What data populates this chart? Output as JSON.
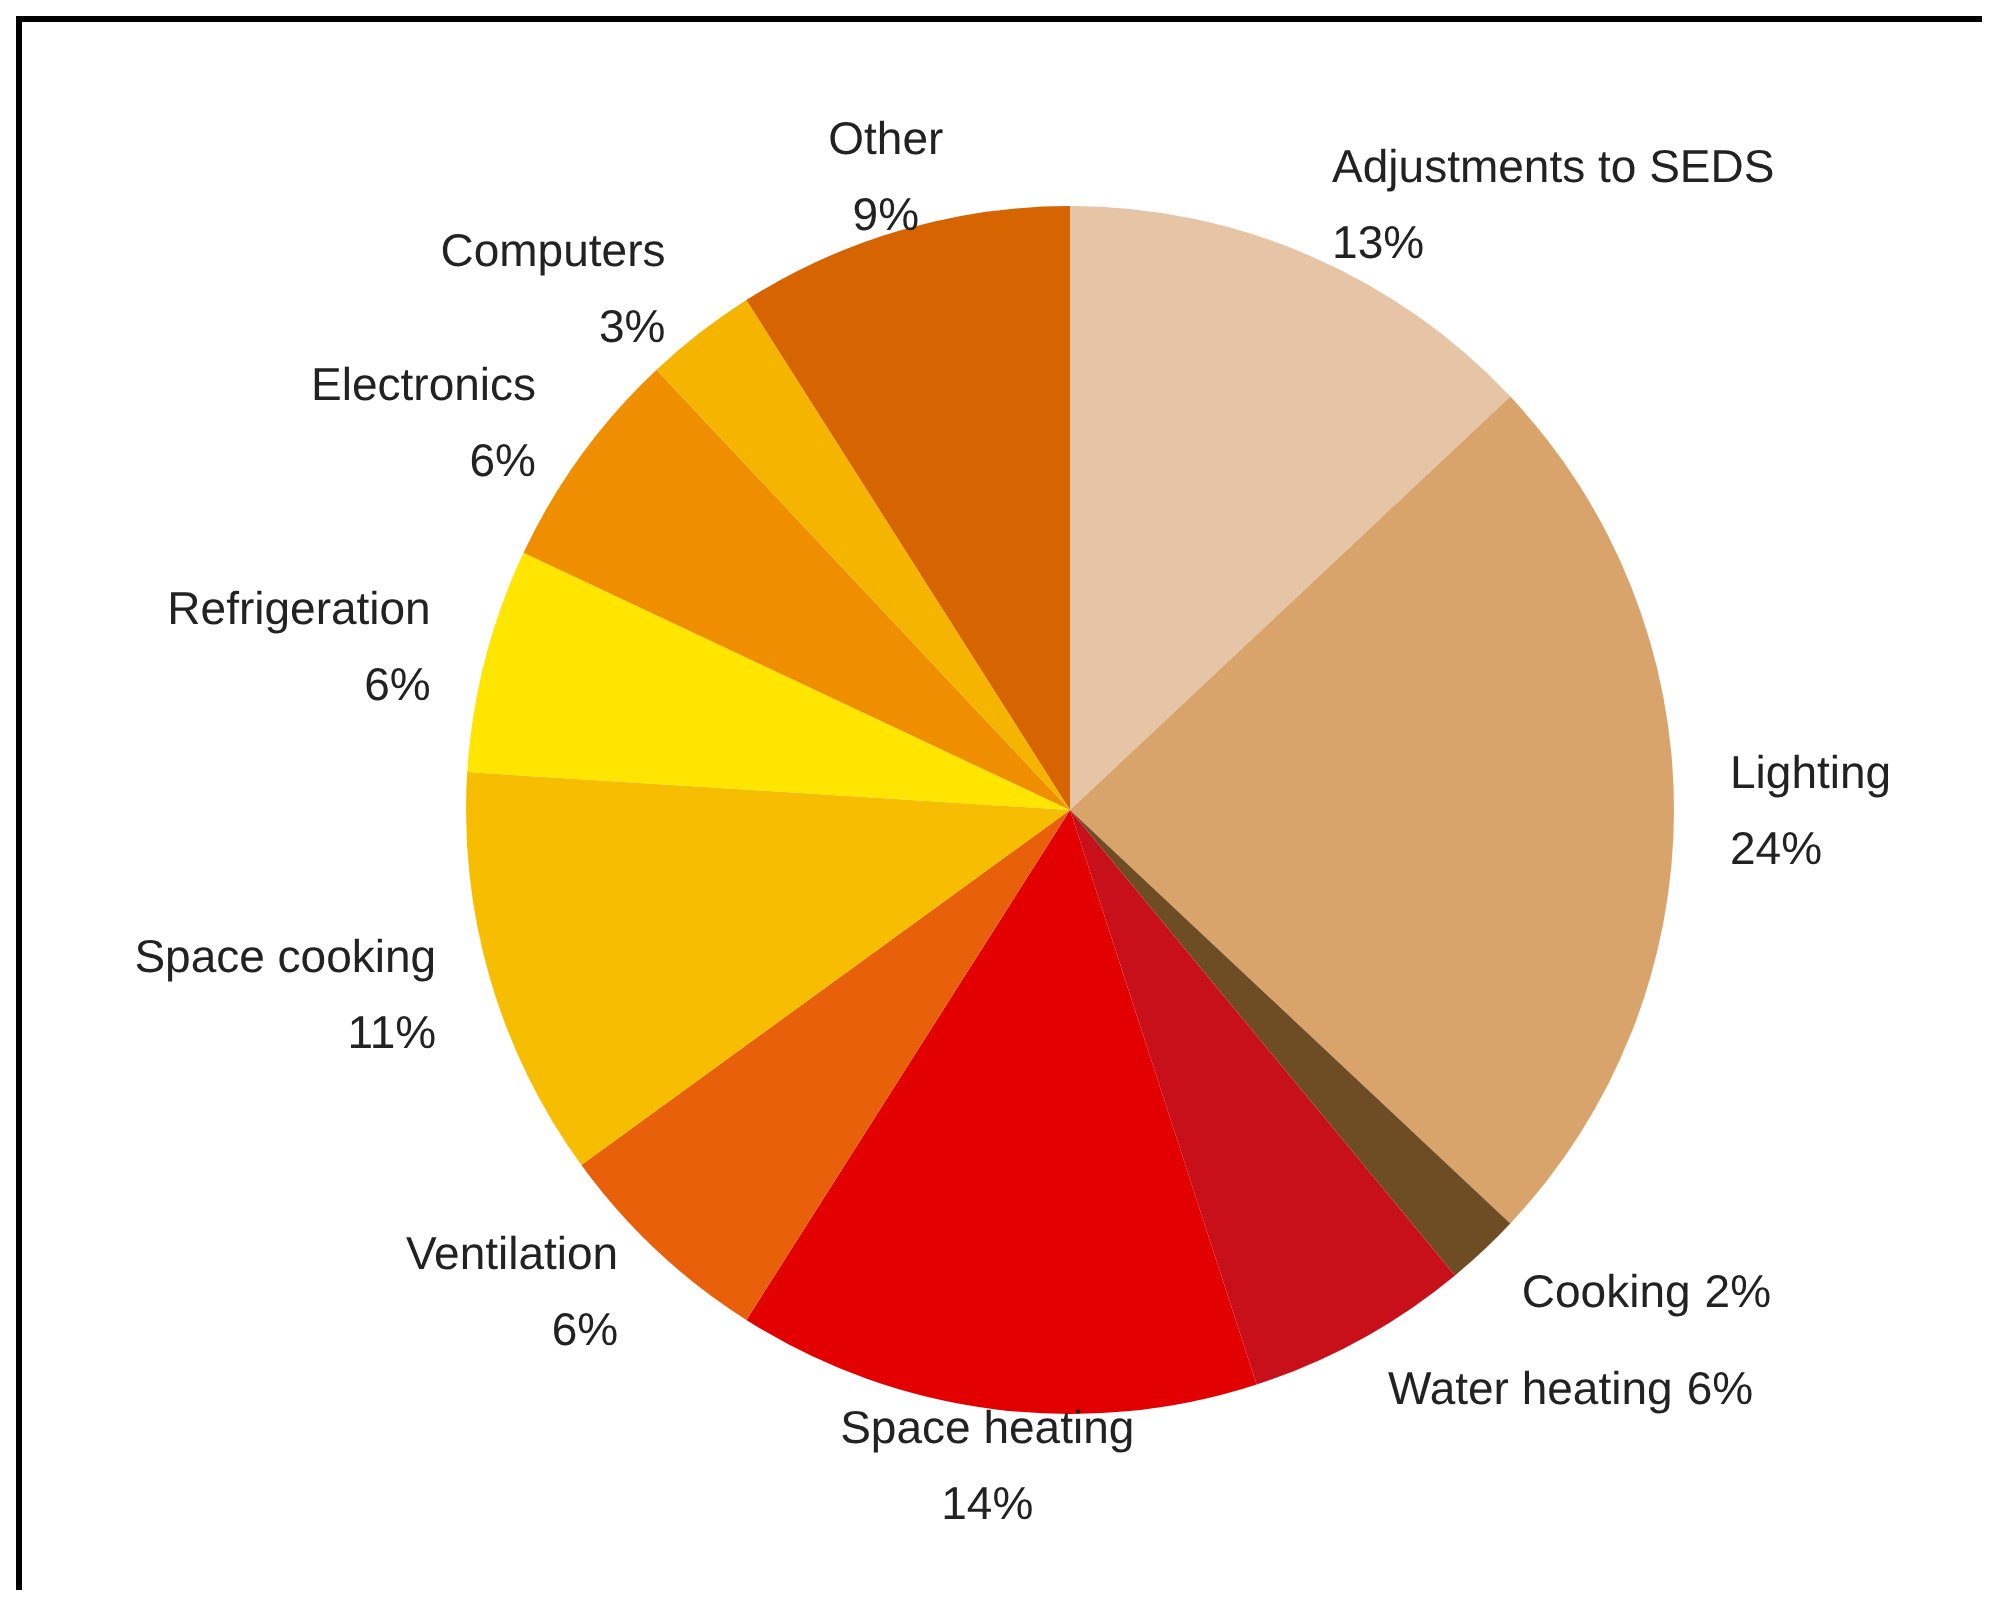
{
  "chart_data": {
    "type": "pie",
    "categories": [
      "Adjustments to SEDS",
      "Lighting",
      "Cooking",
      "Water heating",
      "Space heating",
      "Ventilation",
      "Space cooking",
      "Refrigeration",
      "Electronics",
      "Computers",
      "Other"
    ],
    "values": [
      13,
      24,
      2,
      6,
      14,
      6,
      11,
      6,
      6,
      3,
      9
    ],
    "colors": [
      "#e6c4a6",
      "#d9a46c",
      "#6e4c24",
      "#c8101a",
      "#e30000",
      "#e8600a",
      "#f7bd00",
      "#ffe500",
      "#ef8f00",
      "#f5b400",
      "#d66400"
    ],
    "value_labels": [
      "13%",
      "24%",
      "2%",
      "6%",
      "14%",
      "6%",
      "11%",
      "6%",
      "6%",
      "3%",
      "9%"
    ]
  }
}
